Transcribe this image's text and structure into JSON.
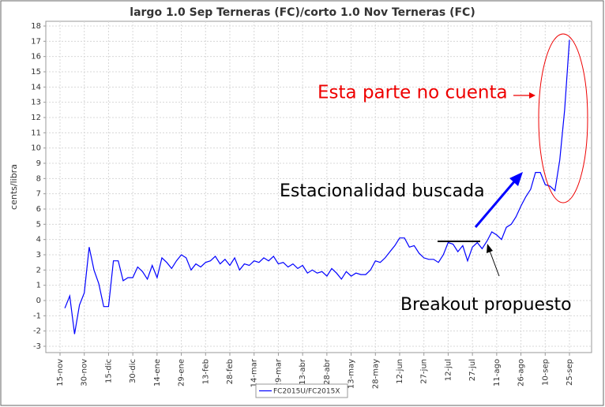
{
  "chart_data": {
    "type": "line",
    "title": "largo 1.0 Sep Terneras (FC)/corto 1.0 Nov Terneras (FC)",
    "y_label": "cents/libra",
    "categories": [
      "15-nov",
      null,
      null,
      null,
      null,
      "30-nov",
      null,
      null,
      null,
      null,
      "15-dic",
      null,
      null,
      null,
      null,
      "30-dic",
      null,
      null,
      null,
      null,
      "14-ene",
      null,
      null,
      null,
      null,
      "29-ene",
      null,
      null,
      null,
      null,
      "13-feb",
      null,
      null,
      null,
      null,
      "28-feb",
      null,
      null,
      null,
      null,
      "14-mar",
      null,
      null,
      null,
      null,
      "29-mar",
      null,
      null,
      null,
      null,
      "13-abr",
      null,
      null,
      null,
      null,
      "28-abr",
      null,
      null,
      null,
      null,
      "13-may",
      null,
      null,
      null,
      null,
      "28-may",
      null,
      null,
      null,
      null,
      "12-jun",
      null,
      null,
      null,
      null,
      "27-jun",
      null,
      null,
      null,
      null,
      "12-jul",
      null,
      null,
      null,
      null,
      "27-jul",
      null,
      null,
      null,
      null,
      "11-ago",
      null,
      null,
      null,
      null,
      "26-ago",
      null,
      null,
      null,
      null,
      "10-sep",
      null,
      null,
      null,
      null,
      "25-sep"
    ],
    "series": [
      {
        "name": "FC2015U/FC2015X",
        "color": "#0000ff",
        "values": [
          null,
          -0.5,
          0.3,
          -2.2,
          -0.3,
          0.5,
          3.5,
          2.0,
          1.1,
          -0.4,
          -0.4,
          2.6,
          2.6,
          1.3,
          1.5,
          1.5,
          2.2,
          1.9,
          1.4,
          2.3,
          1.5,
          2.8,
          2.5,
          2.1,
          2.6,
          3.0,
          2.8,
          2.0,
          2.4,
          2.2,
          2.5,
          2.6,
          2.9,
          2.4,
          2.7,
          2.3,
          2.8,
          2.0,
          2.4,
          2.3,
          2.6,
          2.5,
          2.8,
          2.6,
          2.9,
          2.4,
          2.5,
          2.2,
          2.4,
          2.1,
          2.3,
          1.8,
          2.0,
          1.8,
          1.9,
          1.6,
          2.1,
          1.8,
          1.4,
          1.9,
          1.6,
          1.8,
          1.7,
          1.7,
          2.0,
          2.6,
          2.5,
          2.8,
          3.2,
          3.6,
          4.1,
          4.1,
          3.5,
          3.6,
          3.1,
          2.8,
          2.7,
          2.7,
          2.5,
          3.0,
          3.8,
          3.7,
          3.2,
          3.6,
          2.6,
          3.5,
          3.8,
          3.4,
          3.9,
          4.5,
          4.3,
          4.0,
          4.8,
          5.0,
          5.5,
          6.2,
          6.8,
          7.3,
          8.4,
          8.4,
          7.6,
          7.5,
          7.2,
          9.2,
          12.5,
          17.1
        ]
      }
    ],
    "ylim": [
      -3,
      18
    ],
    "yticks": [
      -3,
      -2,
      -1,
      0,
      1,
      2,
      3,
      4,
      5,
      6,
      7,
      8,
      9,
      10,
      11,
      12,
      13,
      14,
      15,
      16,
      17,
      18
    ],
    "grid": true,
    "legend": "bottom",
    "annotations": [
      "Esta parte no cuenta",
      "Estacionalidad buscada",
      "Breakout propuesto"
    ]
  }
}
